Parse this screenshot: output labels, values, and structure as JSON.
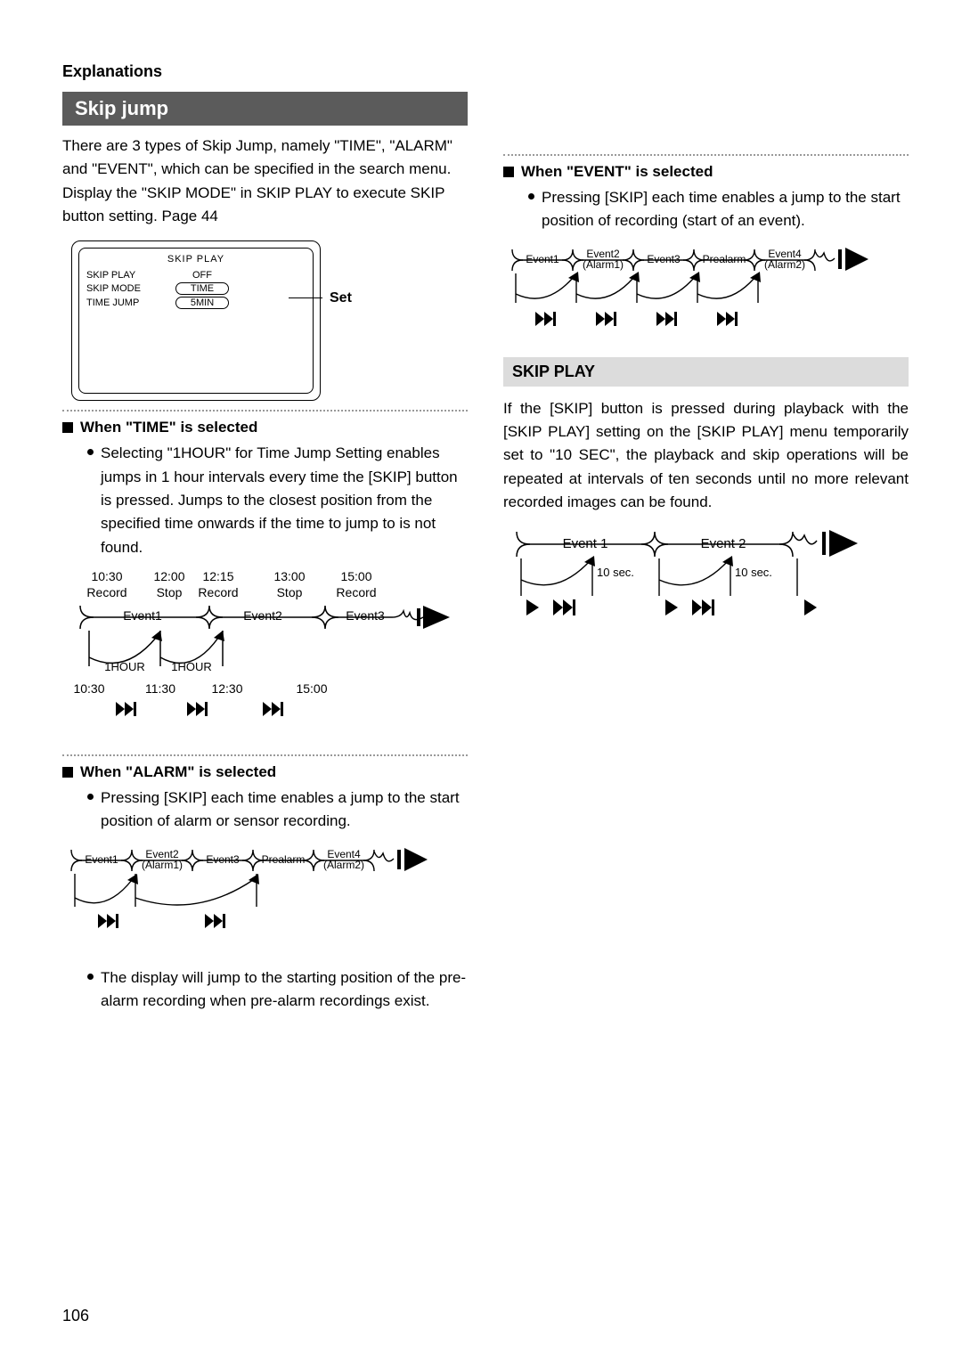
{
  "page_number": "106",
  "explanations_label": "Explanations",
  "skip_jump": {
    "title": "Skip jump",
    "intro": "There are 3 types of Skip Jump, namely \"TIME\", \"ALARM\" and \"EVENT\", which can be specified in the search menu. Display the \"SKIP MODE\" in SKIP PLAY to execute SKIP button setting. Page 44"
  },
  "skip_config": {
    "title": "SKIP PLAY",
    "rows": [
      {
        "label": "SKIP PLAY",
        "value": "OFF",
        "boxed": false
      },
      {
        "label": "SKIP MODE",
        "value": "TIME",
        "boxed": true
      },
      {
        "label": "TIME JUMP",
        "value": "5MIN",
        "boxed": true
      }
    ],
    "set_label": "Set"
  },
  "time_section": {
    "heading": "When \"TIME\" is selected",
    "bullet": "Selecting \"1HOUR\" for Time Jump Setting enables jumps in 1 hour intervals every time the [SKIP] button is pressed. Jumps to the closest position from the specified time onwards if the time to jump to is not found.",
    "diagram": {
      "top_times": [
        "10:30",
        "12:00",
        "12:15",
        "13:00",
        "15:00"
      ],
      "top_labels": [
        "Record",
        "Stop",
        "Record",
        "Stop",
        "Record"
      ],
      "events": [
        "Event1",
        "Event2",
        "Event3"
      ],
      "intervals": [
        "1HOUR",
        "1HOUR"
      ],
      "bottom_times": [
        "10:30",
        "11:30",
        "12:30",
        "15:00"
      ]
    }
  },
  "alarm_section": {
    "heading": "When \"ALARM\" is selected",
    "bullet1": "Pressing [SKIP] each time enables a jump to the start position of alarm or sensor recording.",
    "bullet2": "The display will jump to the starting position of the pre-alarm recording when pre-alarm recordings exist.",
    "events": [
      "Event1",
      "Event2\n(Alarm1)",
      "Event3",
      "Prealarm",
      "Event4\n(Alarm2)"
    ]
  },
  "event_section": {
    "heading": "When \"EVENT\" is selected",
    "bullet": "Pressing [SKIP] each time enables a jump to the start position of recording (start of an event).",
    "events": [
      "Event1",
      "Event2\n(Alarm1)",
      "Event3",
      "Prealarm",
      "Event4\n(Alarm2)"
    ]
  },
  "skip_play": {
    "title": "SKIP PLAY",
    "body": "If the [SKIP] button is pressed during playback with the [SKIP PLAY] setting on the [SKIP PLAY] menu temporarily set to \"10 SEC\", the playback and skip operations will be repeated at intervals of ten seconds until no more relevant recorded images can be found.",
    "events": [
      "Event 1",
      "Event 2"
    ],
    "interval": "10 sec."
  },
  "style": {
    "dark_bar_bg": "#5b5b5b",
    "light_bar_bg": "#dcdcdc",
    "text_color": "#000000",
    "page_bg": "#ffffff"
  }
}
